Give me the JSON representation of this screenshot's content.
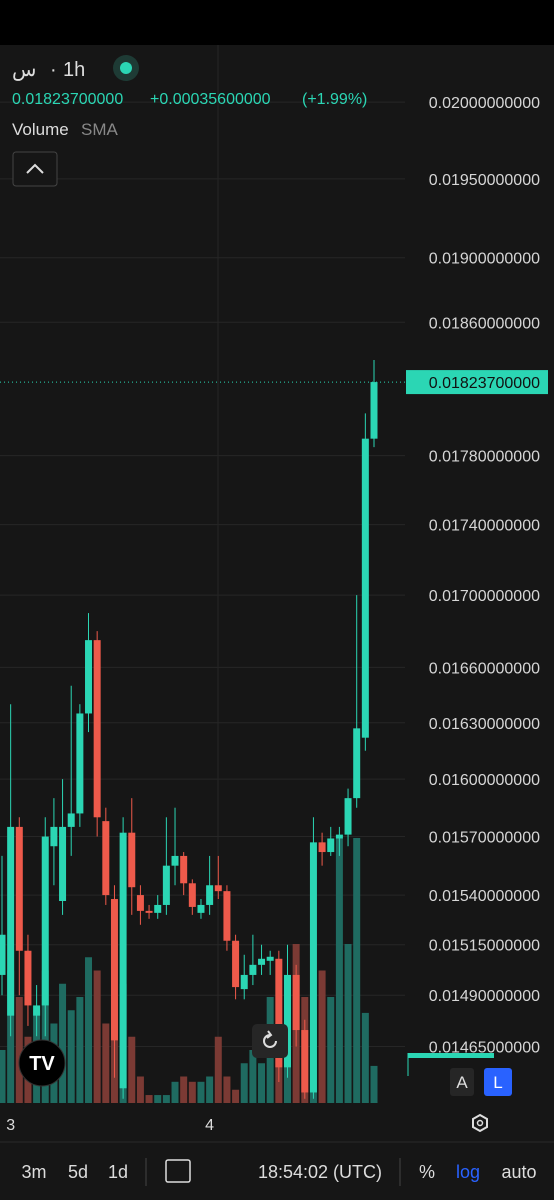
{
  "chart_data": {
    "type": "candlestick",
    "log": true,
    "grid": true,
    "symbol": "س",
    "interval": "1h",
    "price": "0.01823700000",
    "change": "+0.00035600000",
    "change_pct": "(+1.99%)",
    "indicator": "Volume",
    "indicator_sub": "SMA",
    "up_color": "#2bd6b4",
    "down_color": "#ee5a4b",
    "up_volume_color": "#1f6b61",
    "down_volume_color": "#7b3a34",
    "last_price": {
      "value": 0.018237,
      "label": "0.01823700000"
    },
    "ylim": [
      0.01438,
      0.02038
    ],
    "yticks": [
      {
        "value": 0.02,
        "label": "0.02000000000"
      },
      {
        "value": 0.0195,
        "label": "0.01950000000"
      },
      {
        "value": 0.019,
        "label": "0.01900000000"
      },
      {
        "value": 0.0186,
        "label": "0.01860000000"
      },
      {
        "value": 0.0178,
        "label": "0.01780000000"
      },
      {
        "value": 0.0174,
        "label": "0.01740000000"
      },
      {
        "value": 0.017,
        "label": "0.01700000000"
      },
      {
        "value": 0.0166,
        "label": "0.01660000000"
      },
      {
        "value": 0.0163,
        "label": "0.01630000000"
      },
      {
        "value": 0.016,
        "label": "0.01600000000"
      },
      {
        "value": 0.0157,
        "label": "0.01570000000"
      },
      {
        "value": 0.0154,
        "label": "0.01540000000"
      },
      {
        "value": 0.01515,
        "label": "0.01515000000"
      },
      {
        "value": 0.0149,
        "label": "0.01490000000"
      },
      {
        "value": 0.01465,
        "label": "0.01465000000"
      }
    ],
    "categories": [
      null,
      "3",
      null,
      null,
      null,
      null,
      null,
      null,
      null,
      null,
      null,
      null,
      null,
      null,
      null,
      null,
      null,
      null,
      null,
      null,
      null,
      null,
      null,
      null,
      "4",
      null,
      null,
      null,
      null,
      null,
      null,
      null,
      null,
      null,
      null,
      null,
      null,
      null,
      null,
      null,
      null,
      null,
      null
    ],
    "open": [
      0.015,
      0.0148,
      0.01575,
      0.01512,
      0.0148,
      0.01485,
      0.01565,
      0.01537,
      0.01575,
      0.01582,
      0.01635,
      0.01675,
      0.01578,
      0.01538,
      0.01445,
      0.01572,
      0.0154,
      0.01532,
      0.01531,
      0.01535,
      0.01555,
      0.0156,
      0.01546,
      0.01531,
      0.01535,
      0.01545,
      0.01542,
      0.01517,
      0.01493,
      0.015,
      0.01505,
      0.01507,
      0.01508,
      0.01455,
      0.015,
      0.01473,
      0.01443,
      0.01567,
      0.01562,
      0.01569,
      0.01571,
      0.0159,
      0.01622
    ],
    "close": [
      0.0152,
      0.01575,
      0.01512,
      0.01485,
      0.01485,
      0.0157,
      0.01575,
      0.01575,
      0.01582,
      0.01635,
      0.01675,
      0.0158,
      0.0154,
      0.01468,
      0.01572,
      0.01544,
      0.01532,
      0.01531,
      0.01535,
      0.01555,
      0.0156,
      0.01546,
      0.01534,
      0.01535,
      0.01545,
      0.01542,
      0.01517,
      0.01494,
      0.015,
      0.01505,
      0.01508,
      0.01509,
      0.01455,
      0.015,
      0.01473,
      0.01443,
      0.01567,
      0.01562,
      0.01569,
      0.01571,
      0.0159,
      0.01627,
      0.0179
    ],
    "high": [
      0.0156,
      0.0164,
      0.0158,
      0.0152,
      0.01495,
      0.0158,
      0.0159,
      0.016,
      0.0165,
      0.0164,
      0.0169,
      0.0168,
      0.01585,
      0.01545,
      0.0158,
      0.0159,
      0.01545,
      0.01535,
      0.0154,
      0.0158,
      0.01585,
      0.01562,
      0.01548,
      0.01538,
      0.0156,
      0.0156,
      0.01545,
      0.0152,
      0.0151,
      0.0152,
      0.01515,
      0.01512,
      0.01512,
      0.01515,
      0.01505,
      0.01478,
      0.0158,
      0.01572,
      0.01575,
      0.01575,
      0.01595,
      0.017,
      0.01805
    ],
    "low": [
      0.0149,
      0.0147,
      0.0149,
      0.01475,
      0.0147,
      0.0147,
      0.01545,
      0.0153,
      0.0156,
      0.01575,
      0.01625,
      0.0157,
      0.01535,
      0.0145,
      0.0144,
      0.0153,
      0.01525,
      0.01528,
      0.01528,
      0.0153,
      0.01545,
      0.0154,
      0.0153,
      0.01528,
      0.0153,
      0.01538,
      0.01512,
      0.01488,
      0.01488,
      0.01495,
      0.015,
      0.015,
      0.01448,
      0.0145,
      0.01465,
      0.0144,
      0.0144,
      0.01555,
      0.0156,
      0.0156,
      0.01565,
      0.01585,
      0.01615
    ],
    "volume": [
      20,
      50,
      40,
      25,
      35,
      50,
      30,
      45,
      35,
      40,
      55,
      50,
      30,
      40,
      45,
      25,
      10,
      3,
      3,
      3,
      8,
      10,
      8,
      8,
      10,
      25,
      10,
      5,
      15,
      20,
      15,
      40,
      30,
      25,
      60,
      40,
      35,
      50,
      40,
      100,
      60,
      100,
      34
    ],
    "last_open": 0.0179,
    "last_close": 0.018237,
    "last_high": 0.01837,
    "last_low": 0.01785,
    "last_volume": 14
  },
  "controls": {
    "ranges": [
      "3m",
      "5d",
      "1d"
    ],
    "time": "18:54:02 (UTC)",
    "percent": "%",
    "log": "log",
    "auto": "auto",
    "scale_a": "A",
    "scale_l": "L"
  }
}
